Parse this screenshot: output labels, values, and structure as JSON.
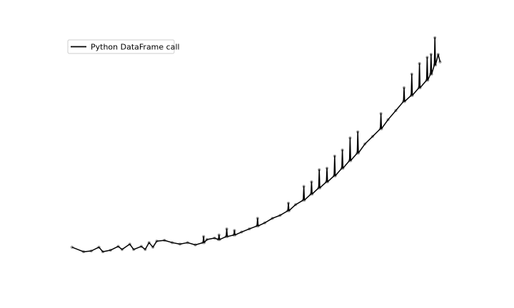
{
  "chart_data": {
    "type": "line",
    "title": "",
    "xlabel": "",
    "ylabel": "",
    "axes_visible": false,
    "grid": false,
    "legend_position": "top-left",
    "series": [
      {
        "name": "Python DataFrame call",
        "line_color": "#000000",
        "marker_color": "#aaaaaa",
        "base_points": [
          [
            0,
            8
          ],
          [
            3,
            5
          ],
          [
            5,
            5.5
          ],
          [
            7,
            8
          ],
          [
            8,
            5
          ],
          [
            10,
            6
          ],
          [
            12,
            8.5
          ],
          [
            13,
            6.5
          ],
          [
            15,
            10
          ],
          [
            16,
            6.5
          ],
          [
            18,
            8.5
          ],
          [
            19,
            6.5
          ],
          [
            20,
            11
          ],
          [
            21,
            8
          ],
          [
            22,
            12
          ],
          [
            24,
            12.5
          ],
          [
            26,
            11
          ],
          [
            28,
            10
          ],
          [
            30,
            11
          ],
          [
            32,
            9.5
          ],
          [
            34,
            11
          ],
          [
            35,
            13
          ],
          [
            37,
            14
          ],
          [
            38,
            13
          ],
          [
            40,
            15
          ],
          [
            42,
            16
          ],
          [
            44,
            18
          ],
          [
            46,
            20
          ],
          [
            48,
            22
          ],
          [
            50,
            24
          ],
          [
            52,
            27
          ],
          [
            54,
            29
          ],
          [
            56,
            32
          ],
          [
            58,
            36
          ],
          [
            60,
            39
          ],
          [
            62,
            43
          ],
          [
            64,
            47
          ],
          [
            66,
            51
          ],
          [
            68,
            55
          ],
          [
            70,
            60
          ],
          [
            72,
            65
          ],
          [
            74,
            70
          ],
          [
            76,
            76
          ],
          [
            78,
            81
          ],
          [
            80,
            86
          ],
          [
            82,
            92
          ],
          [
            84,
            98
          ],
          [
            86,
            104
          ],
          [
            88,
            108
          ],
          [
            90,
            113
          ],
          [
            92,
            118
          ],
          [
            93,
            122
          ],
          [
            94,
            128
          ],
          [
            95,
            135
          ],
          [
            95.5,
            130
          ]
        ],
        "spikes": [
          [
            34,
            4
          ],
          [
            36,
            4
          ],
          [
            38,
            3
          ],
          [
            39,
            5
          ],
          [
            40,
            5
          ],
          [
            42,
            3
          ],
          [
            45,
            4
          ],
          [
            48,
            5
          ],
          [
            51,
            10
          ],
          [
            53,
            6
          ],
          [
            55,
            7
          ],
          [
            56,
            5
          ],
          [
            57,
            8
          ],
          [
            60,
            9
          ],
          [
            61,
            11
          ],
          [
            62,
            8
          ],
          [
            63,
            10
          ],
          [
            64,
            12
          ],
          [
            65,
            14
          ],
          [
            66,
            9
          ],
          [
            67,
            11
          ],
          [
            68,
            13
          ],
          [
            70,
            12
          ],
          [
            71,
            10
          ],
          [
            72,
            15
          ],
          [
            73,
            11
          ],
          [
            74,
            14
          ],
          [
            75,
            12
          ],
          [
            77,
            10
          ],
          [
            79,
            8
          ],
          [
            80,
            10
          ],
          [
            81,
            8
          ],
          [
            83,
            9
          ],
          [
            85,
            11
          ],
          [
            86,
            9
          ],
          [
            87,
            12
          ],
          [
            88,
            14
          ],
          [
            89,
            10
          ],
          [
            90,
            16
          ],
          [
            91,
            12
          ],
          [
            92,
            15
          ],
          [
            93,
            13
          ],
          [
            94,
            18
          ]
        ]
      }
    ],
    "xlim": [
      -2,
      98
    ],
    "ylim": [
      -10,
      145
    ]
  }
}
